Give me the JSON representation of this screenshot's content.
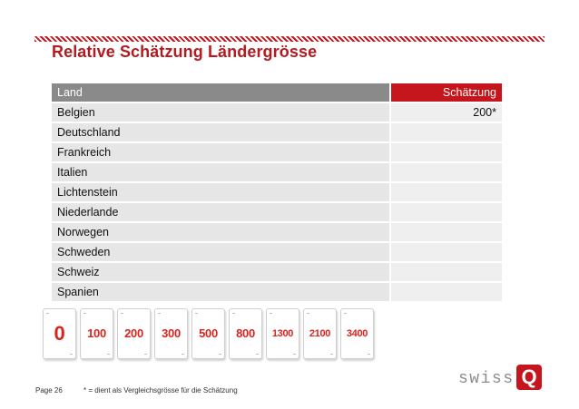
{
  "title": "Relative Schätzung Ländergrösse",
  "table": {
    "headers": {
      "land": "Land",
      "estimate": "Schätzung"
    },
    "rows": [
      {
        "land": "Belgien",
        "estimate": "200*"
      },
      {
        "land": "Deutschland",
        "estimate": ""
      },
      {
        "land": "Frankreich",
        "estimate": ""
      },
      {
        "land": "Italien",
        "estimate": ""
      },
      {
        "land": "Lichtenstein",
        "estimate": ""
      },
      {
        "land": "Niederlande",
        "estimate": ""
      },
      {
        "land": "Norwegen",
        "estimate": ""
      },
      {
        "land": "Schweden",
        "estimate": ""
      },
      {
        "land": "Schweiz",
        "estimate": ""
      },
      {
        "land": "Spanien",
        "estimate": ""
      }
    ]
  },
  "cards": [
    "0",
    "100",
    "200",
    "300",
    "500",
    "800",
    "1300",
    "2100",
    "3400"
  ],
  "footer": {
    "page": "Page 26",
    "note": "* = dient als Vergleichsgrösse für die Schätzung"
  },
  "logo": {
    "text": "swiss",
    "mark": "Q"
  },
  "colors": {
    "accent": "#c4161c",
    "header_gray": "#8a8a8a",
    "row_bg": "#e6e6e6",
    "card_text": "#d9231f"
  }
}
